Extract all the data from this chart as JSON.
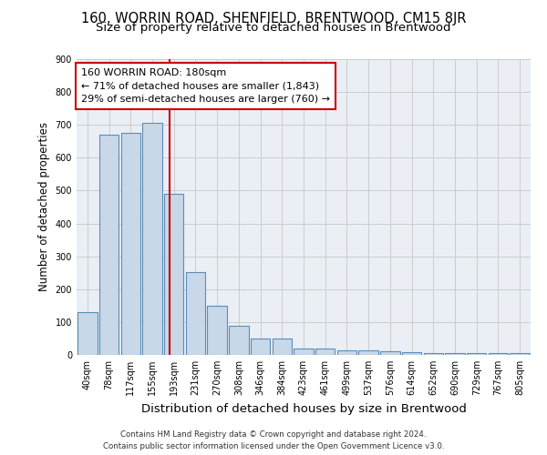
{
  "title": "160, WORRIN ROAD, SHENFIELD, BRENTWOOD, CM15 8JR",
  "subtitle": "Size of property relative to detached houses in Brentwood",
  "xlabel": "Distribution of detached houses by size in Brentwood",
  "ylabel": "Number of detached properties",
  "bar_labels": [
    "40sqm",
    "78sqm",
    "117sqm",
    "155sqm",
    "193sqm",
    "231sqm",
    "270sqm",
    "308sqm",
    "346sqm",
    "384sqm",
    "423sqm",
    "461sqm",
    "499sqm",
    "537sqm",
    "576sqm",
    "614sqm",
    "652sqm",
    "690sqm",
    "729sqm",
    "767sqm",
    "805sqm"
  ],
  "bar_values": [
    130,
    670,
    675,
    705,
    490,
    252,
    150,
    88,
    50,
    50,
    20,
    20,
    15,
    15,
    10,
    8,
    5,
    5,
    5,
    5,
    5
  ],
  "bar_color": "#c8d8e8",
  "bar_edge_color": "#5b8db8",
  "annotation_text": "160 WORRIN ROAD: 180sqm\n← 71% of detached houses are smaller (1,843)\n29% of semi-detached houses are larger (760) →",
  "annotation_box_color": "#ffffff",
  "annotation_box_edge_color": "#cc0000",
  "vline_x_index": 3.82,
  "vline_color": "#cc0000",
  "ylim": [
    0,
    900
  ],
  "yticks": [
    0,
    100,
    200,
    300,
    400,
    500,
    600,
    700,
    800,
    900
  ],
  "grid_color": "#cccccc",
  "background_color": "#eaeff5",
  "footer_text": "Contains HM Land Registry data © Crown copyright and database right 2024.\nContains public sector information licensed under the Open Government Licence v3.0.",
  "title_fontsize": 10.5,
  "subtitle_fontsize": 9.5,
  "xlabel_fontsize": 9.5,
  "ylabel_fontsize": 8.5,
  "tick_fontsize": 7,
  "annot_fontsize": 8
}
